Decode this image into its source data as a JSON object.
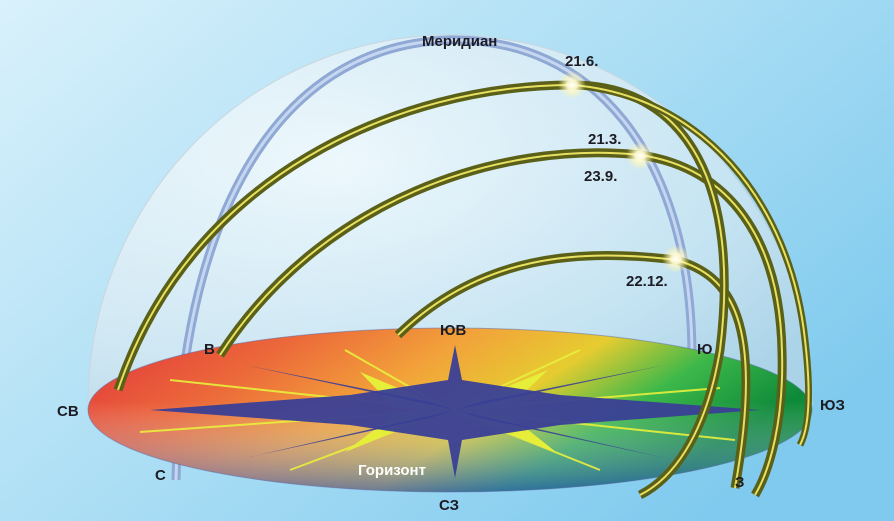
{
  "labels": {
    "meridian": "Меридиан",
    "horizon": "Горизонт",
    "north": "С",
    "south": "Ю",
    "east": "В",
    "west": "З",
    "northeast": "СВ",
    "southeast": "ЮВ",
    "southwest": "ЮЗ",
    "northwest": "СЗ"
  },
  "sun_paths": [
    {
      "date_label": "21.6."
    },
    {
      "date_label": "21.3.",
      "date_label_2": "23.9."
    },
    {
      "date_label": "22.12."
    }
  ],
  "colors": {
    "sky_top": "#ffffff",
    "sky_bottom": "#8fd2f2",
    "dome": "#e4eef4",
    "meridian_arc": "#a9c0e2",
    "sun_path": "#6b6f1d",
    "sun_path_highlight": "#e6e05a",
    "compass_star": "#3a3f96",
    "compass_rays": "#e7ee3a"
  }
}
